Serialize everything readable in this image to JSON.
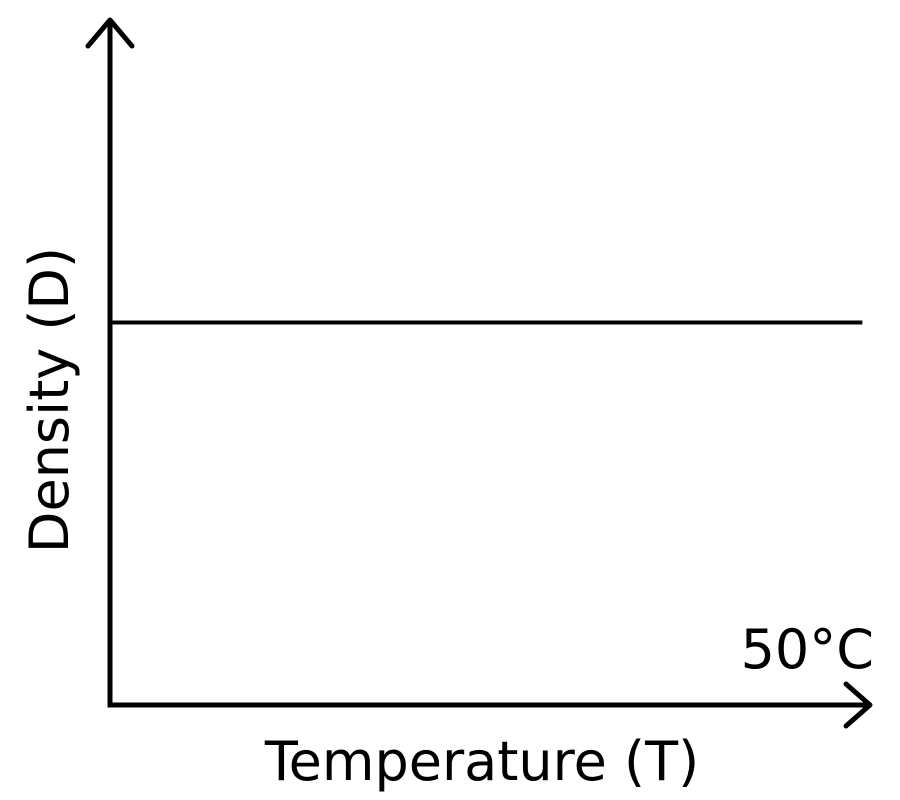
{
  "chart_data": {
    "type": "line",
    "title": "",
    "xlabel": "Temperature (T)",
    "ylabel": "Density (D)",
    "grid": false,
    "series": [
      {
        "values": [
          0.56,
          0.56
        ]
      }
    ],
    "x": [
      0,
      1
    ],
    "xlim": [
      0,
      1.05
    ],
    "ylim": [
      0,
      1
    ],
    "annotations": [
      {
        "text": "50°C"
      }
    ]
  }
}
